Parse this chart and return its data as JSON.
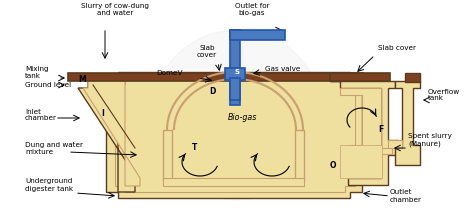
{
  "bg_color": "#ffffff",
  "tan_fill": "#f0e0a0",
  "brown_wall": "#c8a06e",
  "slab_color": "#7a4020",
  "blue_pipe": "#4a7abf",
  "dark_edge": "#5c3a1e",
  "labels": {
    "slurry": "Slurry of cow-dung\nand water",
    "outlet_biogas": "Outlet for\nbio-gas",
    "slab_cover_left": "Slab\ncover",
    "slab_cover_right": "Slab cover",
    "mixing_tank": "Mixing\ntank",
    "dome_v": "DomeV",
    "gas_valve": "Gas valve",
    "ground_level": "Ground level",
    "bio_gas": "Bio-gas",
    "inlet_chamber": "Inlet\nchamber",
    "dung_water": "Dung and water\nmixture",
    "underground": "Underground\ndigester tank",
    "overflow": "Overflow\ntank",
    "spent_slurry": "Spent slurry\n(Manure)",
    "outlet_chamber": "Outlet\nchamber",
    "M": "M",
    "I": "I",
    "D": "D",
    "T": "T",
    "S": "S",
    "F": "F",
    "O": "O"
  },
  "figsize": [
    4.74,
    2.09
  ],
  "dpi": 100
}
